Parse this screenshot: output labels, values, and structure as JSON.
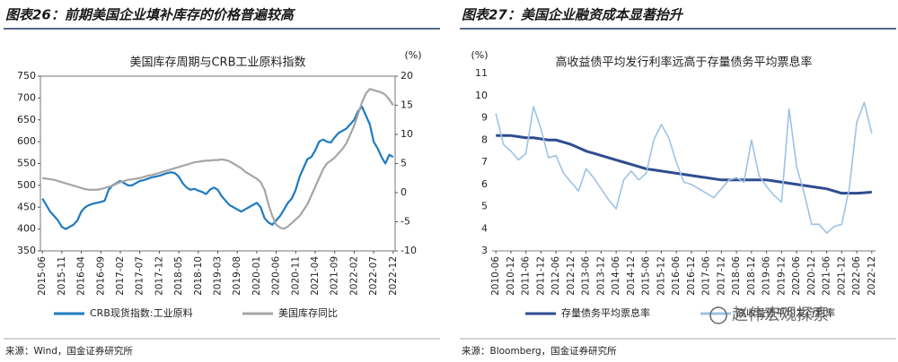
{
  "watermark": "赵伟宏观探索",
  "chart_data": [
    {
      "type": "line",
      "figure_title": "图表26：前期美国企业填补库存的价格普遍较高",
      "title": "美国库存周期与CRB工业原料指数",
      "source": "来源：Wind，国金证券研究所",
      "y2_unit": "(%)",
      "categories": [
        "2015-06",
        null,
        null,
        null,
        null,
        "2015-11",
        null,
        null,
        null,
        null,
        "2016-04",
        null,
        null,
        null,
        null,
        "2016-09",
        null,
        null,
        null,
        null,
        "2017-02",
        null,
        null,
        null,
        null,
        "2017-07",
        null,
        null,
        null,
        null,
        "2017-12",
        null,
        null,
        null,
        null,
        "2018-05",
        null,
        null,
        null,
        null,
        "2018-10",
        null,
        null,
        null,
        null,
        "2019-03",
        null,
        null,
        null,
        null,
        "2019-08",
        null,
        null,
        null,
        null,
        "2020-01",
        null,
        null,
        null,
        null,
        "2020-06",
        null,
        null,
        null,
        null,
        "2020-11",
        null,
        null,
        null,
        null,
        "2021-04",
        null,
        null,
        null,
        null,
        "2021-09",
        null,
        null,
        null,
        null,
        "2022-02",
        null,
        null,
        null,
        null,
        "2022-07",
        null,
        null,
        null,
        null,
        "2022-12"
      ],
      "series": [
        {
          "name": "CRB现货指数:工业原料",
          "color": "#1f7bc1",
          "values": [
            470,
            455,
            440,
            430,
            420,
            405,
            400,
            405,
            410,
            420,
            440,
            450,
            455,
            458,
            460,
            462,
            465,
            490,
            500,
            505,
            510,
            505,
            500,
            500,
            505,
            510,
            512,
            515,
            518,
            520,
            522,
            525,
            528,
            530,
            528,
            520,
            505,
            495,
            490,
            492,
            488,
            485,
            480,
            490,
            495,
            490,
            475,
            465,
            455,
            450,
            445,
            440,
            445,
            450,
            455,
            460,
            450,
            425,
            415,
            410,
            420,
            430,
            445,
            460,
            470,
            490,
            520,
            540,
            560,
            565,
            580,
            600,
            605,
            600,
            598,
            610,
            620,
            625,
            630,
            640,
            650,
            670,
            680,
            660,
            640,
            600,
            585,
            565,
            550,
            570,
            565
          ]
        },
        {
          "name": "美国库存同比",
          "color": "#a6a6a6",
          "axis": "y2",
          "values": [
            2.5,
            2.4,
            2.3,
            2.2,
            2.0,
            1.8,
            1.6,
            1.4,
            1.2,
            1.0,
            0.8,
            0.6,
            0.5,
            0.5,
            0.5,
            0.6,
            0.8,
            1.0,
            1.2,
            1.5,
            1.8,
            2.0,
            2.2,
            2.3,
            2.4,
            2.5,
            2.7,
            2.9,
            3.0,
            3.2,
            3.4,
            3.6,
            3.8,
            4.0,
            4.2,
            4.4,
            4.6,
            4.8,
            5.0,
            5.2,
            5.3,
            5.4,
            5.5,
            5.5,
            5.6,
            5.6,
            5.7,
            5.6,
            5.4,
            5.0,
            4.6,
            4.2,
            3.6,
            3.2,
            2.8,
            2.4,
            1.8,
            0.5,
            -2.0,
            -4.0,
            -5.5,
            -6.0,
            -6.2,
            -5.8,
            -5.2,
            -4.6,
            -4.0,
            -3.0,
            -2.0,
            -0.5,
            1.0,
            2.5,
            4.0,
            5.0,
            5.5,
            6.0,
            6.8,
            7.5,
            8.5,
            10.0,
            11.5,
            13.5,
            15.5,
            17.0,
            17.8,
            17.6,
            17.4,
            17.2,
            16.8,
            16.0,
            15.0
          ]
        }
      ],
      "ylim": [
        350,
        750
      ],
      "yticks": [
        350,
        400,
        450,
        500,
        550,
        600,
        650,
        700,
        750
      ],
      "y2lim": [
        -10,
        20
      ],
      "y2ticks": [
        -10,
        -5,
        0,
        5,
        10,
        15,
        20
      ]
    },
    {
      "type": "line",
      "figure_title": "图表27：美国企业融资成本显著抬升",
      "title": "高收益债平均发行利率远高于存量债务平均票息率",
      "source": "来源：Bloomberg，国金证券研究所",
      "y_unit": "(%)",
      "categories": [
        "2010-06",
        null,
        "2010-12",
        null,
        "2011-06",
        null,
        "2011-12",
        null,
        "2012-06",
        null,
        "2012-12",
        null,
        "2013-06",
        null,
        "2013-12",
        null,
        "2014-06",
        null,
        "2014-12",
        null,
        "2015-06",
        null,
        "2015-12",
        null,
        "2016-06",
        null,
        "2016-12",
        null,
        "2017-06",
        null,
        "2017-12",
        null,
        "2018-06",
        null,
        "2018-12",
        null,
        "2019-06",
        null,
        "2019-12",
        null,
        "2020-06",
        null,
        "2020-12",
        null,
        "2021-06",
        null,
        "2021-12",
        null,
        "2022-06",
        null,
        "2022-12"
      ],
      "series": [
        {
          "name": "存量债务平均票息率",
          "color": "#2e4d8f",
          "values": [
            8.2,
            8.2,
            8.2,
            8.15,
            8.1,
            8.1,
            8.05,
            8.0,
            8.0,
            7.9,
            7.8,
            7.65,
            7.5,
            7.4,
            7.3,
            7.2,
            7.1,
            7.0,
            6.9,
            6.8,
            6.7,
            6.65,
            6.6,
            6.55,
            6.5,
            6.45,
            6.4,
            6.35,
            6.3,
            6.25,
            6.2,
            6.2,
            6.2,
            6.2,
            6.2,
            6.2,
            6.2,
            6.15,
            6.1,
            6.05,
            6.0,
            5.95,
            5.9,
            5.85,
            5.8,
            5.7,
            5.6,
            5.6,
            5.6,
            5.62,
            5.65
          ]
        },
        {
          "name": "高收益债平均发行利率",
          "color": "#9dc3e6",
          "values": [
            9.2,
            7.8,
            7.5,
            7.1,
            7.4,
            9.5,
            8.5,
            7.2,
            7.3,
            6.5,
            6.1,
            5.7,
            6.7,
            6.3,
            5.8,
            5.3,
            4.9,
            6.2,
            6.6,
            6.2,
            6.5,
            8.0,
            8.7,
            8.1,
            7.0,
            6.1,
            6.0,
            5.8,
            5.6,
            5.4,
            5.8,
            6.2,
            6.3,
            6.1,
            8.0,
            6.4,
            5.9,
            5.5,
            5.2,
            9.4,
            6.8,
            5.6,
            4.2,
            4.2,
            3.8,
            4.1,
            4.2,
            5.8,
            8.8,
            9.7,
            8.3
          ]
        }
      ],
      "ylim": [
        3,
        11
      ],
      "yticks": [
        3,
        4,
        5,
        6,
        7,
        8,
        9,
        10,
        11
      ]
    }
  ]
}
